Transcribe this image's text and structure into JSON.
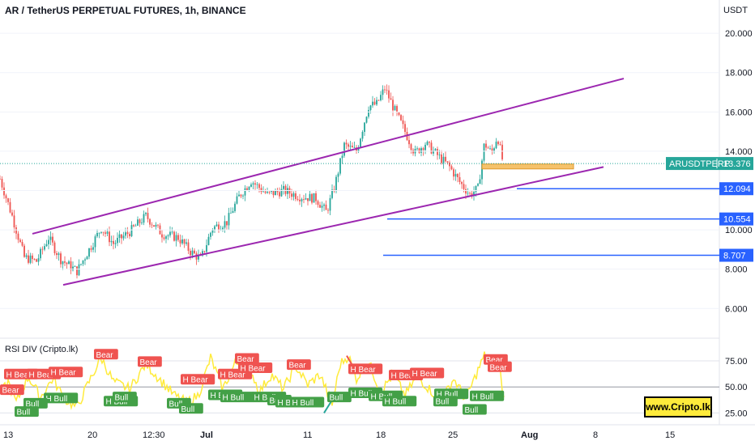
{
  "header": {
    "title": "AR / TetherUS PERPETUAL FUTURES, 1h, BINANCE"
  },
  "price_axis": {
    "currency": "USDT",
    "ticks": [
      "20.000",
      "18.000",
      "16.000",
      "14.000",
      "12.000",
      "10.000",
      "8.000",
      "6.000"
    ]
  },
  "rsi_panel": {
    "title": "RSI DIV (Cripto.lk)",
    "ticks": [
      "75.00",
      "50.00",
      "25.00"
    ]
  },
  "time_axis": {
    "ticks": [
      "13",
      "20",
      "12:30",
      "Jul",
      "11",
      "18",
      "25",
      "Aug",
      "8",
      "15"
    ]
  },
  "current_price": {
    "symbol": "ARUSDTPERP",
    "value": "13.376",
    "color": "#26a69a"
  },
  "levels": [
    {
      "label": "12.094",
      "price": 12.094
    },
    {
      "label": "10.554",
      "price": 10.554
    },
    {
      "label": "8.707",
      "price": 8.707
    }
  ],
  "watermark": "www.Cripto.lk",
  "colors": {
    "up": "#26a69a",
    "down": "#ef5350",
    "channel": "#9c27b0",
    "level": "#2962ff",
    "rsi": "#ffeb3b",
    "zone": "#f5c26b"
  },
  "chart_data": {
    "type": "candlestick",
    "title": "AR / TetherUS PERPETUAL FUTURES, 1h, BINANCE",
    "x_ticks": [
      "13",
      "20",
      "12:30",
      "Jul",
      "11",
      "18",
      "25",
      "Aug",
      "8",
      "15"
    ],
    "y_ticks": [
      20,
      18,
      16,
      14,
      12,
      10,
      8,
      6
    ],
    "ylim": [
      4.9,
      21.2
    ],
    "price_path": [
      {
        "x": 0,
        "p": 12.6
      },
      {
        "x": 15,
        "p": 10.7
      },
      {
        "x": 30,
        "p": 8.6
      },
      {
        "x": 45,
        "p": 8.4
      },
      {
        "x": 60,
        "p": 9.6
      },
      {
        "x": 75,
        "p": 8.5
      },
      {
        "x": 95,
        "p": 7.9
      },
      {
        "x": 110,
        "p": 9.0
      },
      {
        "x": 125,
        "p": 10.1
      },
      {
        "x": 140,
        "p": 9.3
      },
      {
        "x": 160,
        "p": 9.9
      },
      {
        "x": 180,
        "p": 10.7
      },
      {
        "x": 200,
        "p": 9.8
      },
      {
        "x": 220,
        "p": 9.6
      },
      {
        "x": 235,
        "p": 8.9
      },
      {
        "x": 248,
        "p": 8.5
      },
      {
        "x": 262,
        "p": 10.1
      },
      {
        "x": 280,
        "p": 10.4
      },
      {
        "x": 295,
        "p": 11.7
      },
      {
        "x": 310,
        "p": 12.5
      },
      {
        "x": 330,
        "p": 11.8
      },
      {
        "x": 350,
        "p": 12.0
      },
      {
        "x": 370,
        "p": 11.7
      },
      {
        "x": 390,
        "p": 11.6
      },
      {
        "x": 403,
        "p": 10.9
      },
      {
        "x": 413,
        "p": 12.2
      },
      {
        "x": 425,
        "p": 14.3
      },
      {
        "x": 440,
        "p": 14.0
      },
      {
        "x": 455,
        "p": 16.3
      },
      {
        "x": 465,
        "p": 16.4
      },
      {
        "x": 475,
        "p": 17.2
      },
      {
        "x": 487,
        "p": 16.1
      },
      {
        "x": 500,
        "p": 15.0
      },
      {
        "x": 512,
        "p": 13.9
      },
      {
        "x": 525,
        "p": 14.4
      },
      {
        "x": 540,
        "p": 13.8
      },
      {
        "x": 555,
        "p": 13.2
      },
      {
        "x": 568,
        "p": 12.4
      },
      {
        "x": 580,
        "p": 11.8
      },
      {
        "x": 590,
        "p": 12.1
      },
      {
        "x": 598,
        "p": 14.4
      },
      {
        "x": 607,
        "p": 13.9
      },
      {
        "x": 614,
        "p": 14.8
      },
      {
        "x": 621,
        "p": 13.4
      }
    ],
    "channel_upper": [
      {
        "x": 40,
        "p": 9.8
      },
      {
        "x": 770,
        "p": 17.7
      }
    ],
    "channel_lower": [
      {
        "x": 78,
        "p": 7.2
      },
      {
        "x": 745,
        "p": 13.2
      }
    ],
    "zone": {
      "x1": 595,
      "x2": 708,
      "p_top": 13.35,
      "p_bottom": 13.1
    },
    "levels": [
      {
        "price": 12.094,
        "x_start": 638
      },
      {
        "price": 10.554,
        "x_start": 478
      },
      {
        "price": 8.707,
        "x_start": 473
      }
    ],
    "last_price": 13.376,
    "rsi_ylim": [
      16,
      89
    ],
    "rsi_reference_levels": [
      75,
      50,
      25
    ],
    "rsi_path": [
      {
        "x": 0,
        "v": 42
      },
      {
        "x": 10,
        "v": 55
      },
      {
        "x": 20,
        "v": 35
      },
      {
        "x": 35,
        "v": 60
      },
      {
        "x": 50,
        "v": 40
      },
      {
        "x": 65,
        "v": 58
      },
      {
        "x": 80,
        "v": 38
      },
      {
        "x": 95,
        "v": 30
      },
      {
        "x": 110,
        "v": 55
      },
      {
        "x": 125,
        "v": 78
      },
      {
        "x": 140,
        "v": 55
      },
      {
        "x": 160,
        "v": 48
      },
      {
        "x": 180,
        "v": 72
      },
      {
        "x": 200,
        "v": 55
      },
      {
        "x": 215,
        "v": 42
      },
      {
        "x": 230,
        "v": 35
      },
      {
        "x": 245,
        "v": 42
      },
      {
        "x": 260,
        "v": 78
      },
      {
        "x": 275,
        "v": 48
      },
      {
        "x": 290,
        "v": 72
      },
      {
        "x": 305,
        "v": 76
      },
      {
        "x": 320,
        "v": 45
      },
      {
        "x": 335,
        "v": 62
      },
      {
        "x": 350,
        "v": 48
      },
      {
        "x": 365,
        "v": 70
      },
      {
        "x": 380,
        "v": 52
      },
      {
        "x": 395,
        "v": 62
      },
      {
        "x": 410,
        "v": 33
      },
      {
        "x": 420,
        "v": 72
      },
      {
        "x": 430,
        "v": 80
      },
      {
        "x": 440,
        "v": 58
      },
      {
        "x": 455,
        "v": 74
      },
      {
        "x": 470,
        "v": 45
      },
      {
        "x": 485,
        "v": 62
      },
      {
        "x": 500,
        "v": 42
      },
      {
        "x": 515,
        "v": 60
      },
      {
        "x": 530,
        "v": 48
      },
      {
        "x": 545,
        "v": 36
      },
      {
        "x": 560,
        "v": 58
      },
      {
        "x": 575,
        "v": 38
      },
      {
        "x": 590,
        "v": 66
      },
      {
        "x": 598,
        "v": 80
      },
      {
        "x": 608,
        "v": 70
      },
      {
        "x": 616,
        "v": 72
      },
      {
        "x": 622,
        "v": 38
      }
    ],
    "signals": [
      {
        "text": "Bear",
        "x": 116,
        "v": 81,
        "color": "#ef5350"
      },
      {
        "text": "Bear",
        "x": 170,
        "v": 74,
        "color": "#ef5350"
      },
      {
        "text": "H Bear",
        "x": 5,
        "v": 62,
        "color": "#ef5350"
      },
      {
        "text": "H Bear",
        "x": 33,
        "v": 62,
        "color": "#ef5350"
      },
      {
        "text": "H Bear",
        "x": 60,
        "v": 64,
        "color": "#ef5350"
      },
      {
        "text": "Bear",
        "x": 0,
        "v": 47,
        "color": "#ef5350"
      },
      {
        "text": "H Bear",
        "x": 223,
        "v": 57,
        "color": "#ef5350"
      },
      {
        "text": "H Bear",
        "x": 269,
        "v": 62,
        "color": "#ef5350"
      },
      {
        "text": "Bear",
        "x": 290,
        "v": 77,
        "color": "#ef5350"
      },
      {
        "text": "H Bear",
        "x": 294,
        "v": 68,
        "color": "#ef5350"
      },
      {
        "text": "Bear",
        "x": 354,
        "v": 71,
        "color": "#ef5350"
      },
      {
        "text": "H Bear",
        "x": 430,
        "v": 67,
        "color": "#ef5350"
      },
      {
        "text": "H Bear",
        "x": 480,
        "v": 61,
        "color": "#ef5350"
      },
      {
        "text": "H Bear",
        "x": 506,
        "v": 63,
        "color": "#ef5350"
      },
      {
        "text": "Bear",
        "x": 597,
        "v": 76,
        "color": "#ef5350"
      },
      {
        "text": "Bear",
        "x": 602,
        "v": 69,
        "color": "#ef5350"
      },
      {
        "text": "H Bull",
        "x": 54,
        "v": 39,
        "color": "#43a047"
      },
      {
        "text": "Bull",
        "x": 29,
        "v": 34,
        "color": "#43a047"
      },
      {
        "text": "Bull",
        "x": 18,
        "v": 26,
        "color": "#43a047"
      },
      {
        "text": "H Bull",
        "x": 128,
        "v": 36,
        "color": "#43a047"
      },
      {
        "text": "Bull",
        "x": 139,
        "v": 40,
        "color": "#43a047"
      },
      {
        "text": "Bull",
        "x": 206,
        "v": 34,
        "color": "#43a047"
      },
      {
        "text": "Bull",
        "x": 221,
        "v": 29,
        "color": "#43a047"
      },
      {
        "text": "H Bull",
        "x": 257,
        "v": 42,
        "color": "#43a047"
      },
      {
        "text": "H Bull",
        "x": 272,
        "v": 40,
        "color": "#43a047"
      },
      {
        "text": "H Bull",
        "x": 311,
        "v": 40,
        "color": "#43a047"
      },
      {
        "text": "Bull",
        "x": 330,
        "v": 37,
        "color": "#43a047"
      },
      {
        "text": "H Bull",
        "x": 340,
        "v": 35,
        "color": "#43a047"
      },
      {
        "text": "H Bull",
        "x": 358,
        "v": 35,
        "color": "#43a047"
      },
      {
        "text": "Bull",
        "x": 404,
        "v": 40,
        "color": "#43a047"
      },
      {
        "text": "H Bull",
        "x": 430,
        "v": 44,
        "color": "#43a047"
      },
      {
        "text": "H Bull",
        "x": 455,
        "v": 41,
        "color": "#43a047"
      },
      {
        "text": "H Bull",
        "x": 472,
        "v": 36,
        "color": "#43a047"
      },
      {
        "text": "H Bull",
        "x": 536,
        "v": 43,
        "color": "#43a047"
      },
      {
        "text": "Bull",
        "x": 535,
        "v": 36,
        "color": "#43a047"
      },
      {
        "text": "H Bull",
        "x": 580,
        "v": 41,
        "color": "#43a047"
      },
      {
        "text": "Bull",
        "x": 571,
        "v": 28,
        "color": "#43a047"
      }
    ]
  }
}
